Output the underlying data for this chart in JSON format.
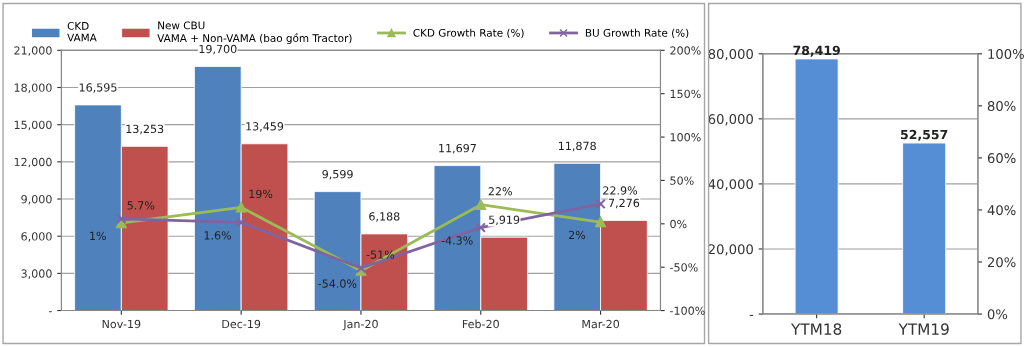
{
  "chart_data": [
    {
      "type": "bar",
      "categories": [
        "Nov-19",
        "Dec-19",
        "Jan-20",
        "Feb-20",
        "Mar-20"
      ],
      "series": [
        {
          "name": "CKD\nVAMA",
          "type": "bar",
          "color": "#4f81bd",
          "values": [
            16595,
            19700,
            9599,
            11697,
            11878
          ],
          "value_labels": [
            "16,595",
            "19,700",
            "9,599",
            "11,697",
            "11,878"
          ]
        },
        {
          "name": "New CBU\nVAMA + Non-VAMA (bao gồm Tractor)",
          "type": "bar",
          "color": "#c0504d",
          "values": [
            13253,
            13459,
            6188,
            5919,
            7276
          ],
          "value_labels": [
            "13,253",
            "13,459",
            "6,188",
            "5,919",
            "7,276"
          ]
        },
        {
          "name": "CKD Growth Rate (%)",
          "type": "line",
          "axis": "y2",
          "marker": "triangle",
          "color": "#9bbb59",
          "values": [
            1,
            19,
            -54.0,
            22,
            2
          ],
          "value_labels": [
            "1%",
            "19%",
            "-54.0%",
            "22%",
            "2%"
          ]
        },
        {
          "name": "BU Growth Rate (%)",
          "type": "line",
          "axis": "y2",
          "marker": "cross",
          "color": "#8064a2",
          "values": [
            5.7,
            1.6,
            -51,
            -4.3,
            22.9
          ],
          "value_labels": [
            "5.7%",
            "1.6%",
            "-51%",
            "-4.3%",
            "22.9%"
          ]
        }
      ],
      "ylim": [
        0,
        21000
      ],
      "yticks": [
        {
          "value": 0,
          "label": "-"
        },
        {
          "value": 3000,
          "label": "3,000"
        },
        {
          "value": 6000,
          "label": "6,000"
        },
        {
          "value": 9000,
          "label": "9,000"
        },
        {
          "value": 12000,
          "label": "12,000"
        },
        {
          "value": 15000,
          "label": "15,000"
        },
        {
          "value": 18000,
          "label": "18,000"
        },
        {
          "value": 21000,
          "label": "21,000"
        }
      ],
      "y2lim": [
        -100,
        200
      ],
      "y2ticks": [
        {
          "value": -100,
          "label": "-100%"
        },
        {
          "value": -50,
          "label": "-50%"
        },
        {
          "value": 0,
          "label": "0%"
        },
        {
          "value": 50,
          "label": "50%"
        },
        {
          "value": 100,
          "label": "100%"
        },
        {
          "value": 150,
          "label": "150%"
        },
        {
          "value": 200,
          "label": "200%"
        }
      ],
      "grid": "y",
      "legend": "top",
      "line_style": "solid"
    },
    {
      "type": "bar",
      "categories": [
        "YTM18",
        "YTM19"
      ],
      "series": [
        {
          "type": "bar",
          "color": "#558ed5",
          "values": [
            78419,
            52557
          ],
          "value_labels": [
            "78,419",
            "52,557"
          ]
        }
      ],
      "ylim": [
        0,
        80000
      ],
      "yticks": [
        {
          "value": 0,
          "label": "-"
        },
        {
          "value": 20000,
          "label": "20,000"
        },
        {
          "value": 40000,
          "label": "40,000"
        },
        {
          "value": 60000,
          "label": "60,000"
        },
        {
          "value": 80000,
          "label": "80,000"
        }
      ],
      "y2lim": [
        0,
        100
      ],
      "y2ticks": [
        {
          "value": 0,
          "label": "0%"
        },
        {
          "value": 20,
          "label": "20%"
        },
        {
          "value": 40,
          "label": "40%"
        },
        {
          "value": 60,
          "label": "60%"
        },
        {
          "value": 80,
          "label": "80%"
        },
        {
          "value": 100,
          "label": "100%"
        }
      ],
      "grid": "y",
      "legend": false
    }
  ]
}
